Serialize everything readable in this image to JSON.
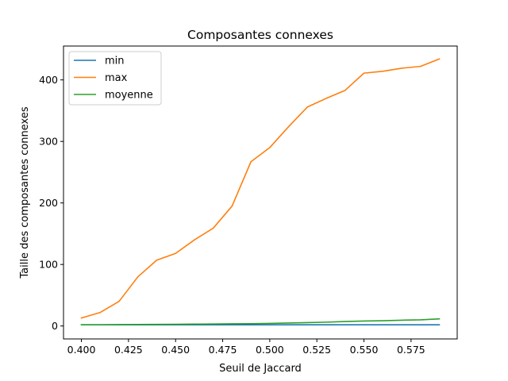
{
  "chart_data": {
    "type": "line",
    "title": "Composantes connexes",
    "xlabel": "Seuil de Jaccard",
    "ylabel": "Taille des composantes connexes",
    "xlim": [
      0.3905,
      0.5995
    ],
    "ylim": [
      -21.05,
      455.05
    ],
    "xticks": [
      0.4,
      0.425,
      0.45,
      0.475,
      0.5,
      0.525,
      0.55,
      0.575
    ],
    "xtick_labels": [
      "0.400",
      "0.425",
      "0.450",
      "0.475",
      "0.500",
      "0.525",
      "0.550",
      "0.575"
    ],
    "yticks": [
      0,
      100,
      200,
      300,
      400
    ],
    "ytick_labels": [
      "0",
      "100",
      "200",
      "300",
      "400"
    ],
    "grid": false,
    "legend_position": "top-left",
    "x": [
      0.4,
      0.41,
      0.42,
      0.43,
      0.44,
      0.45,
      0.46,
      0.47,
      0.48,
      0.49,
      0.5,
      0.51,
      0.52,
      0.53,
      0.54,
      0.55,
      0.56,
      0.57,
      0.58,
      0.59
    ],
    "series": [
      {
        "name": "min",
        "color": "#1f77b4",
        "values": [
          2,
          2,
          2,
          2,
          2,
          2,
          2,
          2,
          2,
          2,
          2,
          2,
          2,
          2,
          2,
          2,
          2,
          2,
          2,
          2
        ]
      },
      {
        "name": "max",
        "color": "#ff7f0e",
        "values": [
          13,
          22,
          40,
          80,
          107,
          118,
          140,
          159,
          195,
          267,
          290,
          324,
          356,
          370,
          383,
          411,
          414,
          419,
          422,
          434
        ]
      },
      {
        "name": "moyenne",
        "color": "#2ca02c",
        "values": [
          2,
          2,
          2.2,
          2.4,
          2.6,
          2.8,
          3,
          3.2,
          3.5,
          3.8,
          4.2,
          4.8,
          5.5,
          6.2,
          7.2,
          8,
          8.6,
          9.4,
          10,
          11.5
        ]
      }
    ]
  }
}
